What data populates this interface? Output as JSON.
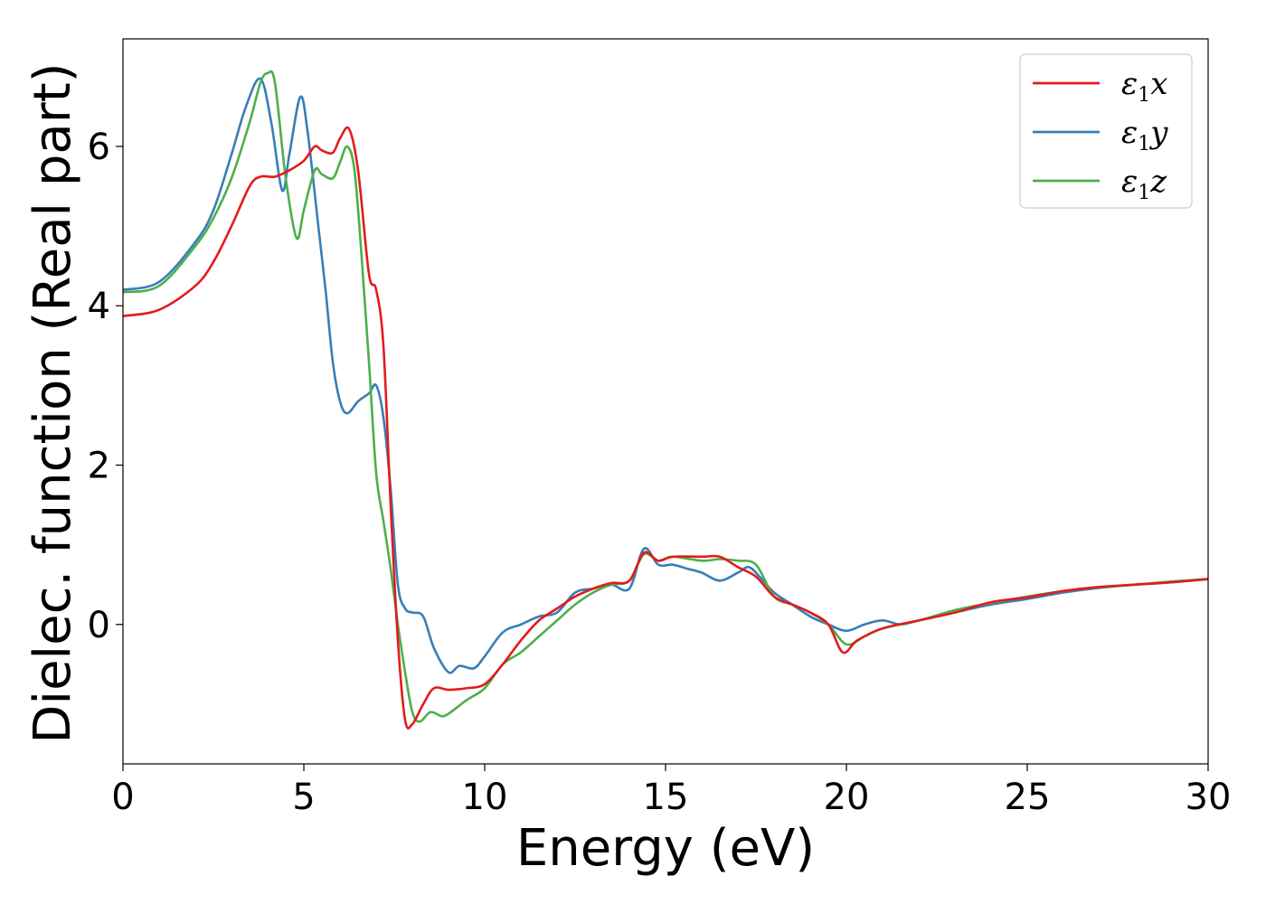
{
  "chart_data": {
    "type": "line",
    "title": "",
    "xlabel": "Energy (eV)",
    "ylabel": "Dielec. function (Real part)",
    "xlim": [
      0,
      30
    ],
    "ylim": [
      -1.75,
      7.35
    ],
    "xticks": [
      0,
      5,
      10,
      15,
      20,
      25,
      30
    ],
    "yticks": [
      0,
      2,
      4,
      6
    ],
    "grid": false,
    "legend_position": "top-right",
    "series": [
      {
        "name": "ε1x",
        "legend_main": "ε",
        "legend_sub": "1",
        "legend_tail": "x",
        "color": "#e41a1c",
        "x": [
          0,
          1,
          2,
          2.5,
          3,
          3.5,
          3.8,
          4.2,
          4.6,
          5.0,
          5.3,
          5.5,
          5.8,
          6.0,
          6.25,
          6.5,
          6.8,
          7.0,
          7.2,
          7.4,
          7.6,
          7.8,
          8.0,
          8.3,
          8.6,
          9.0,
          9.5,
          10.0,
          10.5,
          11.0,
          11.5,
          12.0,
          12.5,
          13.0,
          13.5,
          14.0,
          14.4,
          14.8,
          15.2,
          16.0,
          16.5,
          17.0,
          17.5,
          18.0,
          18.5,
          19.0,
          19.5,
          19.9,
          20.3,
          21.0,
          22.0,
          23.0,
          24.0,
          25.0,
          26.0,
          27.0,
          28.0,
          29.0,
          30.0
        ],
        "y": [
          3.87,
          3.95,
          4.25,
          4.55,
          5.0,
          5.5,
          5.62,
          5.62,
          5.7,
          5.82,
          6.0,
          5.95,
          5.92,
          6.1,
          6.22,
          5.7,
          4.4,
          4.2,
          3.5,
          1.5,
          -0.2,
          -1.2,
          -1.25,
          -1.0,
          -0.8,
          -0.82,
          -0.8,
          -0.75,
          -0.5,
          -0.2,
          0.05,
          0.2,
          0.35,
          0.45,
          0.52,
          0.55,
          0.9,
          0.8,
          0.85,
          0.85,
          0.85,
          0.72,
          0.6,
          0.35,
          0.25,
          0.15,
          0.0,
          -0.35,
          -0.2,
          -0.05,
          0.05,
          0.15,
          0.28,
          0.34,
          0.42,
          0.47,
          0.5,
          0.53,
          0.57
        ]
      },
      {
        "name": "ε1y",
        "legend_main": "ε",
        "legend_sub": "1",
        "legend_tail": "y",
        "color": "#377eb8",
        "x": [
          0,
          1,
          2,
          2.5,
          3,
          3.4,
          3.8,
          4.1,
          4.4,
          4.6,
          4.9,
          5.1,
          5.4,
          5.6,
          5.8,
          6.0,
          6.2,
          6.5,
          6.8,
          7.0,
          7.2,
          7.4,
          7.6,
          7.8,
          8.0,
          8.3,
          8.6,
          9.0,
          9.3,
          9.7,
          10.0,
          10.5,
          11.0,
          11.5,
          12.0,
          12.5,
          13.0,
          13.5,
          14.0,
          14.4,
          14.8,
          15.2,
          15.6,
          16.0,
          16.5,
          17.0,
          17.3,
          17.6,
          18.0,
          18.5,
          19.0,
          19.5,
          20.0,
          20.5,
          21.0,
          21.5,
          22.0,
          23.0,
          24.0,
          25.0,
          26.0,
          27.0,
          28.0,
          29.0,
          30.0
        ],
        "y": [
          4.2,
          4.3,
          4.8,
          5.2,
          5.9,
          6.5,
          6.85,
          6.3,
          5.45,
          5.9,
          6.62,
          6.2,
          5.0,
          4.2,
          3.3,
          2.8,
          2.65,
          2.8,
          2.9,
          3.0,
          2.6,
          1.7,
          0.5,
          0.2,
          0.15,
          0.1,
          -0.3,
          -0.6,
          -0.52,
          -0.55,
          -0.4,
          -0.1,
          0.0,
          0.1,
          0.15,
          0.4,
          0.45,
          0.5,
          0.45,
          0.95,
          0.75,
          0.75,
          0.7,
          0.65,
          0.55,
          0.65,
          0.72,
          0.6,
          0.4,
          0.25,
          0.1,
          0.0,
          -0.08,
          0.0,
          0.05,
          0.0,
          0.05,
          0.15,
          0.25,
          0.32,
          0.4,
          0.46,
          0.5,
          0.53,
          0.57
        ]
      },
      {
        "name": "ε1z",
        "legend_main": "ε",
        "legend_sub": "1",
        "legend_tail": "z",
        "color": "#4daf4a",
        "x": [
          0,
          1,
          2,
          2.5,
          3,
          3.5,
          3.8,
          4.0,
          4.2,
          4.5,
          4.8,
          5.0,
          5.3,
          5.5,
          5.8,
          6.0,
          6.2,
          6.4,
          6.6,
          6.8,
          7.0,
          7.2,
          7.4,
          7.6,
          7.8,
          8.0,
          8.2,
          8.5,
          8.8,
          9.0,
          9.5,
          10.0,
          10.5,
          11.0,
          11.5,
          12.0,
          12.5,
          13.0,
          13.5,
          14.0,
          14.4,
          14.8,
          15.2,
          16.0,
          16.5,
          17.0,
          17.5,
          18.0,
          18.5,
          19.0,
          19.5,
          20.0,
          20.5,
          21.0,
          22.0,
          23.0,
          24.0,
          25.0,
          26.0,
          27.0,
          28.0,
          29.0,
          30.0
        ],
        "y": [
          4.17,
          4.25,
          4.75,
          5.1,
          5.6,
          6.3,
          6.8,
          6.92,
          6.8,
          5.6,
          4.85,
          5.2,
          5.7,
          5.65,
          5.6,
          5.8,
          6.0,
          5.7,
          4.6,
          3.3,
          1.9,
          1.3,
          0.7,
          0.0,
          -0.6,
          -1.1,
          -1.22,
          -1.1,
          -1.15,
          -1.12,
          -0.95,
          -0.8,
          -0.5,
          -0.35,
          -0.15,
          0.05,
          0.25,
          0.4,
          0.5,
          0.55,
          0.88,
          0.8,
          0.85,
          0.8,
          0.82,
          0.8,
          0.75,
          0.35,
          0.25,
          0.15,
          0.0,
          -0.25,
          -0.15,
          -0.05,
          0.05,
          0.18,
          0.27,
          0.35,
          0.42,
          0.47,
          0.5,
          0.54,
          0.57
        ]
      }
    ]
  }
}
